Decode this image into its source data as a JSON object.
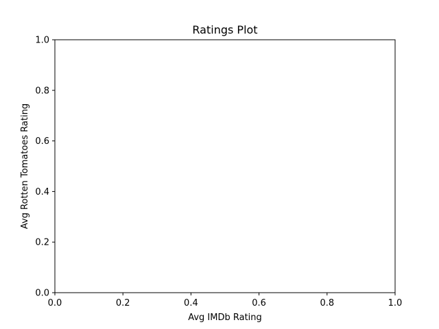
{
  "chart_data": {
    "type": "scatter",
    "title": "Ratings Plot",
    "xlabel": "Avg IMDb Rating",
    "ylabel": "Avg Rotten Tomatoes Rating",
    "xlim": [
      0.0,
      1.0
    ],
    "ylim": [
      0.0,
      1.0
    ],
    "x_ticks": [
      "0.0",
      "0.2",
      "0.4",
      "0.6",
      "0.8",
      "1.0"
    ],
    "y_ticks": [
      "0.0",
      "0.2",
      "0.4",
      "0.6",
      "0.8",
      "1.0"
    ],
    "series": [],
    "grid": false,
    "legend": false
  },
  "colors": {
    "background": "#ffffff",
    "axes_edge": "#000000",
    "text": "#000000"
  }
}
